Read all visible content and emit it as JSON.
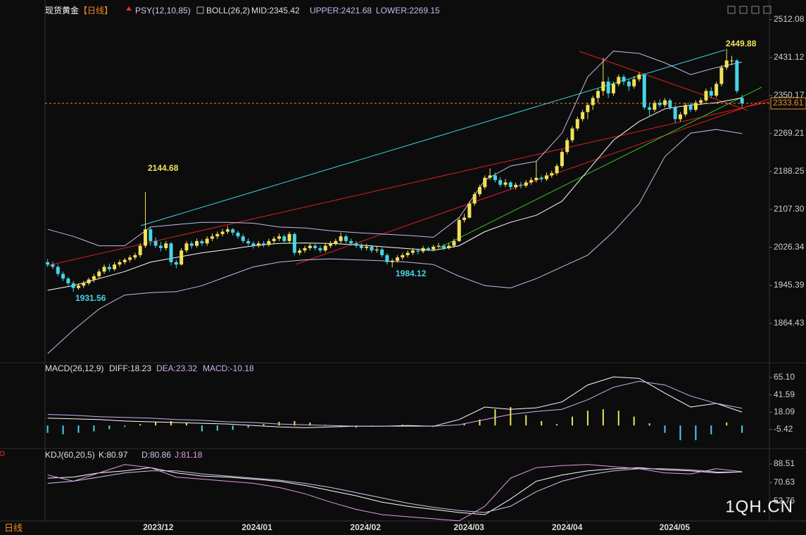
{
  "chart_data": {
    "type": "candlestick",
    "title": "现货黄金",
    "period": "【日线】",
    "header": [
      "PSY(12,10,85)",
      "BOLL(26,2)",
      "MID:2345.42",
      "UPPER:2421.68",
      "LOWER:2269.15"
    ],
    "up_color": "#f0e25a",
    "down_color": "#45d6e6",
    "xlim": [
      -0.5,
      135.8
    ],
    "xticks": [
      {
        "value": 21.5,
        "label": "2023/12"
      },
      {
        "value": 40.7,
        "label": "2024/01"
      },
      {
        "value": 61.8,
        "label": "2024/02"
      },
      {
        "value": 81.9,
        "label": "2024/03"
      },
      {
        "value": 101,
        "label": "2024/04"
      },
      {
        "value": 121.9,
        "label": "2024/05"
      }
    ],
    "ylim": [
      1782,
      2521
    ],
    "yticks": [
      2512.08,
      2431.12,
      2350.17,
      2269.21,
      2188.25,
      {
        "value": 2107.3,
        "label": "2107.30"
      },
      2026.34,
      1945.39,
      1864.43
    ],
    "last": 2333.61,
    "annotations": [
      2144.68,
      1931.56,
      1984.12,
      2449.88
    ],
    "candles": [
      [
        1995,
        2002,
        1985,
        1990
      ],
      [
        1990,
        1996,
        1980,
        1985
      ],
      [
        1985,
        1990,
        1965,
        1970
      ],
      [
        1970,
        1975,
        1955,
        1960
      ],
      [
        1960,
        1964,
        1945,
        1950
      ],
      [
        1950,
        1955,
        1931.56,
        1940
      ],
      [
        1940,
        1950,
        1936,
        1945
      ],
      [
        1945,
        1955,
        1940,
        1950
      ],
      [
        1950,
        1962,
        1946,
        1958
      ],
      [
        1958,
        1970,
        1952,
        1965
      ],
      [
        1965,
        1980,
        1960,
        1975
      ],
      [
        1975,
        1990,
        1970,
        1985
      ],
      [
        1985,
        1992,
        1975,
        1980
      ],
      [
        1980,
        1995,
        1976,
        1990
      ],
      [
        1990,
        2000,
        1985,
        1995
      ],
      [
        1995,
        2004,
        1990,
        2000
      ],
      [
        2000,
        2010,
        1995,
        2005
      ],
      [
        2005,
        2015,
        2000,
        2010
      ],
      [
        2010,
        2035,
        2005,
        2030
      ],
      [
        2030,
        2144.68,
        2025,
        2065
      ],
      [
        2065,
        2070,
        2030,
        2040
      ],
      [
        2040,
        2048,
        2025,
        2030
      ],
      [
        2030,
        2038,
        2018,
        2025
      ],
      [
        2025,
        2040,
        2020,
        2035
      ],
      [
        2035,
        2038,
        1988,
        1995
      ],
      [
        1995,
        2000,
        1982,
        1990
      ],
      [
        1990,
        2025,
        1988,
        2020
      ],
      [
        2020,
        2040,
        2015,
        2035
      ],
      [
        2035,
        2040,
        2024,
        2030
      ],
      [
        2030,
        2045,
        2026,
        2040
      ],
      [
        2040,
        2044,
        2030,
        2035
      ],
      [
        2035,
        2050,
        2030,
        2045
      ],
      [
        2045,
        2056,
        2040,
        2050
      ],
      [
        2050,
        2060,
        2044,
        2055
      ],
      [
        2055,
        2066,
        2050,
        2060
      ],
      [
        2060,
        2072,
        2055,
        2065
      ],
      [
        2065,
        2068,
        2052,
        2058
      ],
      [
        2058,
        2062,
        2045,
        2050
      ],
      [
        2050,
        2055,
        2035,
        2040
      ],
      [
        2040,
        2046,
        2030,
        2035
      ],
      [
        2035,
        2040,
        2024,
        2030
      ],
      [
        2030,
        2040,
        2026,
        2035
      ],
      [
        2035,
        2040,
        2027,
        2032
      ],
      [
        2032,
        2045,
        2028,
        2040
      ],
      [
        2040,
        2050,
        2035,
        2045
      ],
      [
        2045,
        2056,
        2040,
        2050
      ],
      [
        2050,
        2054,
        2035,
        2040
      ],
      [
        2040,
        2060,
        2036,
        2055
      ],
      [
        2055,
        2058,
        2010,
        2015
      ],
      [
        2015,
        2025,
        2010,
        2020
      ],
      [
        2020,
        2030,
        2015,
        2025
      ],
      [
        2025,
        2035,
        2020,
        2030
      ],
      [
        2030,
        2034,
        2020,
        2025
      ],
      [
        2025,
        2030,
        2015,
        2020
      ],
      [
        2020,
        2035,
        2016,
        2030
      ],
      [
        2030,
        2040,
        2025,
        2035
      ],
      [
        2035,
        2045,
        2030,
        2040
      ],
      [
        2040,
        2058,
        2035,
        2050
      ],
      [
        2050,
        2054,
        2035,
        2040
      ],
      [
        2040,
        2045,
        2030,
        2035
      ],
      [
        2035,
        2040,
        2025,
        2030
      ],
      [
        2030,
        2036,
        2020,
        2025
      ],
      [
        2025,
        2034,
        2020,
        2028
      ],
      [
        2028,
        2032,
        2015,
        2020
      ],
      [
        2020,
        2028,
        2015,
        2022
      ],
      [
        2022,
        2026,
        2005,
        2010
      ],
      [
        2010,
        2014,
        1990,
        1995
      ],
      [
        1995,
        2002,
        1984.12,
        1998
      ],
      [
        1998,
        2010,
        1994,
        2005
      ],
      [
        2005,
        2015,
        2000,
        2010
      ],
      [
        2010,
        2020,
        2005,
        2015
      ],
      [
        2015,
        2025,
        2010,
        2020
      ],
      [
        2020,
        2024,
        2012,
        2018
      ],
      [
        2018,
        2030,
        2014,
        2025
      ],
      [
        2025,
        2028,
        2018,
        2022
      ],
      [
        2022,
        2032,
        2018,
        2028
      ],
      [
        2028,
        2036,
        2024,
        2030
      ],
      [
        2030,
        2034,
        2020,
        2025
      ],
      [
        2025,
        2035,
        2022,
        2030
      ],
      [
        2030,
        2045,
        2026,
        2040
      ],
      [
        2040,
        2090,
        2038,
        2085
      ],
      [
        2085,
        2098,
        2080,
        2090
      ],
      [
        2090,
        2125,
        2088,
        2120
      ],
      [
        2120,
        2145,
        2115,
        2140
      ],
      [
        2140,
        2160,
        2135,
        2155
      ],
      [
        2155,
        2180,
        2150,
        2175
      ],
      [
        2175,
        2195,
        2170,
        2180
      ],
      [
        2180,
        2186,
        2165,
        2170
      ],
      [
        2170,
        2176,
        2155,
        2160
      ],
      [
        2160,
        2172,
        2155,
        2165
      ],
      [
        2165,
        2168,
        2150,
        2155
      ],
      [
        2155,
        2165,
        2150,
        2160
      ],
      [
        2160,
        2166,
        2152,
        2158
      ],
      [
        2158,
        2170,
        2154,
        2165
      ],
      [
        2165,
        2176,
        2160,
        2170
      ],
      [
        2170,
        2210,
        2165,
        2175
      ],
      [
        2175,
        2180,
        2166,
        2172
      ],
      [
        2172,
        2186,
        2168,
        2180
      ],
      [
        2180,
        2190,
        2175,
        2185
      ],
      [
        2185,
        2205,
        2180,
        2200
      ],
      [
        2200,
        2235,
        2195,
        2230
      ],
      [
        2230,
        2260,
        2225,
        2255
      ],
      [
        2255,
        2285,
        2250,
        2280
      ],
      [
        2280,
        2305,
        2275,
        2300
      ],
      [
        2300,
        2320,
        2295,
        2315
      ],
      [
        2315,
        2335,
        2300,
        2330
      ],
      [
        2330,
        2350,
        2320,
        2345
      ],
      [
        2345,
        2365,
        2335,
        2360
      ],
      [
        2360,
        2431,
        2350,
        2380
      ],
      [
        2380,
        2390,
        2345,
        2355
      ],
      [
        2355,
        2380,
        2350,
        2375
      ],
      [
        2375,
        2395,
        2370,
        2390
      ],
      [
        2390,
        2395,
        2372,
        2380
      ],
      [
        2380,
        2385,
        2360,
        2370
      ],
      [
        2370,
        2392,
        2365,
        2385
      ],
      [
        2385,
        2400,
        2380,
        2395
      ],
      [
        2395,
        2398,
        2320,
        2325
      ],
      [
        2325,
        2335,
        2305,
        2320
      ],
      [
        2320,
        2340,
        2315,
        2335
      ],
      [
        2335,
        2342,
        2325,
        2330
      ],
      [
        2330,
        2345,
        2325,
        2340
      ],
      [
        2340,
        2344,
        2320,
        2325
      ],
      [
        2325,
        2330,
        2292,
        2300
      ],
      [
        2300,
        2315,
        2295,
        2310
      ],
      [
        2310,
        2335,
        2305,
        2330
      ],
      [
        2330,
        2335,
        2315,
        2320
      ],
      [
        2320,
        2340,
        2316,
        2335
      ],
      [
        2335,
        2345,
        2330,
        2340
      ],
      [
        2340,
        2365,
        2336,
        2360
      ],
      [
        2360,
        2368,
        2345,
        2350
      ],
      [
        2350,
        2380,
        2346,
        2375
      ],
      [
        2375,
        2415,
        2370,
        2410
      ],
      [
        2410,
        2449.88,
        2405,
        2425
      ],
      [
        2425,
        2435,
        2415,
        2425
      ],
      [
        2425,
        2428,
        2355,
        2360
      ],
      [
        2345,
        2352,
        2325,
        2333.61
      ]
    ],
    "boll": {
      "x": [
        0,
        5,
        10,
        15,
        20,
        25,
        30,
        35,
        40,
        45,
        50,
        55,
        60,
        65,
        70,
        75,
        80,
        85,
        90,
        95,
        100,
        105,
        110,
        115,
        120,
        125,
        130,
        135
      ],
      "series": [
        {
          "color": "#c9b8ec",
          "values": [
            2065,
            2050,
            2030,
            2030,
            2070,
            2075,
            2080,
            2080,
            2078,
            2070,
            2068,
            2062,
            2058,
            2055,
            2052,
            2048,
            2090,
            2170,
            2200,
            2210,
            2270,
            2390,
            2445,
            2440,
            2420,
            2395,
            2410,
            2421.68
          ]
        },
        {
          "color": "#ffffff",
          "values": [
            1935,
            1945,
            1960,
            1975,
            1995,
            2005,
            2015,
            2022,
            2030,
            2035,
            2036,
            2035,
            2032,
            2028,
            2024,
            2020,
            2030,
            2060,
            2080,
            2095,
            2125,
            2190,
            2255,
            2295,
            2322,
            2330,
            2335,
            2345.42
          ]
        },
        {
          "color": "#c9b8ec",
          "values": [
            1800,
            1850,
            1895,
            1925,
            1930,
            1932,
            1945,
            1965,
            1985,
            1995,
            2000,
            2002,
            2000,
            1998,
            1995,
            1990,
            1965,
            1945,
            1940,
            1960,
            1985,
            2010,
            2060,
            2120,
            2220,
            2270,
            2278,
            2269.15
          ]
        }
      ]
    },
    "macd": {
      "header": [
        "MACD(26,12,9)",
        "DIFF:18.23",
        "DEA:23.32",
        "MACD:-10.18"
      ],
      "ylim": [
        -31.3,
        83.3
      ],
      "yticks": [
        {
          "value": 65.1,
          "label": "65.10"
        },
        41.59,
        18.09,
        -5.42
      ],
      "x": [
        0,
        5,
        10,
        15,
        20,
        25,
        30,
        35,
        40,
        45,
        50,
        55,
        60,
        65,
        70,
        75,
        80,
        85,
        90,
        95,
        100,
        105,
        110,
        115,
        120,
        125,
        130,
        135
      ],
      "series": [
        {
          "color": "#ffffff",
          "values": [
            10,
            9,
            8,
            6,
            5,
            4,
            3,
            2,
            0,
            -2,
            -3,
            -2,
            -1,
            -1,
            0,
            -1,
            8,
            25,
            22,
            24,
            32,
            55,
            66,
            64,
            44,
            25,
            30,
            18.23
          ]
        },
        {
          "color": "#d4b0f0",
          "values": [
            15,
            14,
            12,
            11,
            10,
            8,
            7,
            5,
            4,
            2,
            1,
            0,
            -1,
            -1,
            -1,
            -1,
            1,
            8,
            15,
            19,
            22,
            35,
            52,
            60,
            55,
            40,
            30,
            23.32
          ]
        }
      ],
      "hist_x": [
        0,
        3,
        6,
        9,
        12,
        15,
        18,
        21,
        24,
        27,
        30,
        33,
        36,
        39,
        42,
        45,
        48,
        51,
        54,
        57,
        60,
        63,
        66,
        69,
        72,
        75,
        78,
        81,
        84,
        87,
        90,
        93,
        96,
        99,
        102,
        105,
        108,
        111,
        114,
        117,
        120,
        123,
        126,
        129,
        132,
        135
      ],
      "hist": [
        -10,
        -12,
        -10,
        -8,
        -5,
        -2,
        2,
        5,
        6,
        4,
        -8,
        -7,
        -6,
        -3,
        2,
        5,
        6,
        4,
        1,
        -2,
        -3,
        -1,
        0,
        1,
        -1,
        -2,
        0,
        3,
        8,
        22,
        25,
        14,
        6,
        2,
        12,
        20,
        22,
        20,
        12,
        3,
        -10,
        -20,
        -20,
        -12,
        4,
        -10
      ]
    },
    "kdj": {
      "header": [
        "KDJ(60,20,5)",
        "K:80.97",
        "D:80.86",
        "J:81.18"
      ],
      "ylim": [
        34.6,
        102
      ],
      "yticks": [
        88.51,
        70.63,
        52.76
      ],
      "x": [
        0,
        5,
        10,
        15,
        20,
        25,
        30,
        35,
        40,
        45,
        50,
        55,
        60,
        65,
        70,
        75,
        80,
        85,
        90,
        95,
        100,
        105,
        110,
        115,
        120,
        125,
        130,
        135
      ],
      "series": [
        {
          "color": "#ffffff",
          "values": [
            75,
            76,
            80,
            82,
            85,
            80,
            77,
            76,
            74,
            72,
            68,
            63,
            58,
            52,
            48,
            45,
            42,
            40,
            55,
            72,
            78,
            82,
            84,
            85,
            83,
            82,
            80,
            80.97
          ]
        },
        {
          "color": "#cfc6f2",
          "values": [
            70,
            72,
            76,
            80,
            82,
            82,
            79,
            77,
            75,
            73,
            70,
            66,
            61,
            56,
            51,
            47,
            44,
            42,
            48,
            62,
            72,
            78,
            82,
            84,
            84,
            83,
            81,
            80.86
          ]
        },
        {
          "color": "#e39ee3",
          "values": [
            78,
            72,
            80,
            88,
            85,
            76,
            74,
            72,
            70,
            66,
            60,
            52,
            45,
            40,
            38,
            36,
            34,
            48,
            75,
            85,
            87,
            88,
            86,
            84,
            80,
            79,
            84,
            81.18
          ]
        }
      ]
    },
    "footer": "日线",
    "watermark": "1QH.CN"
  }
}
